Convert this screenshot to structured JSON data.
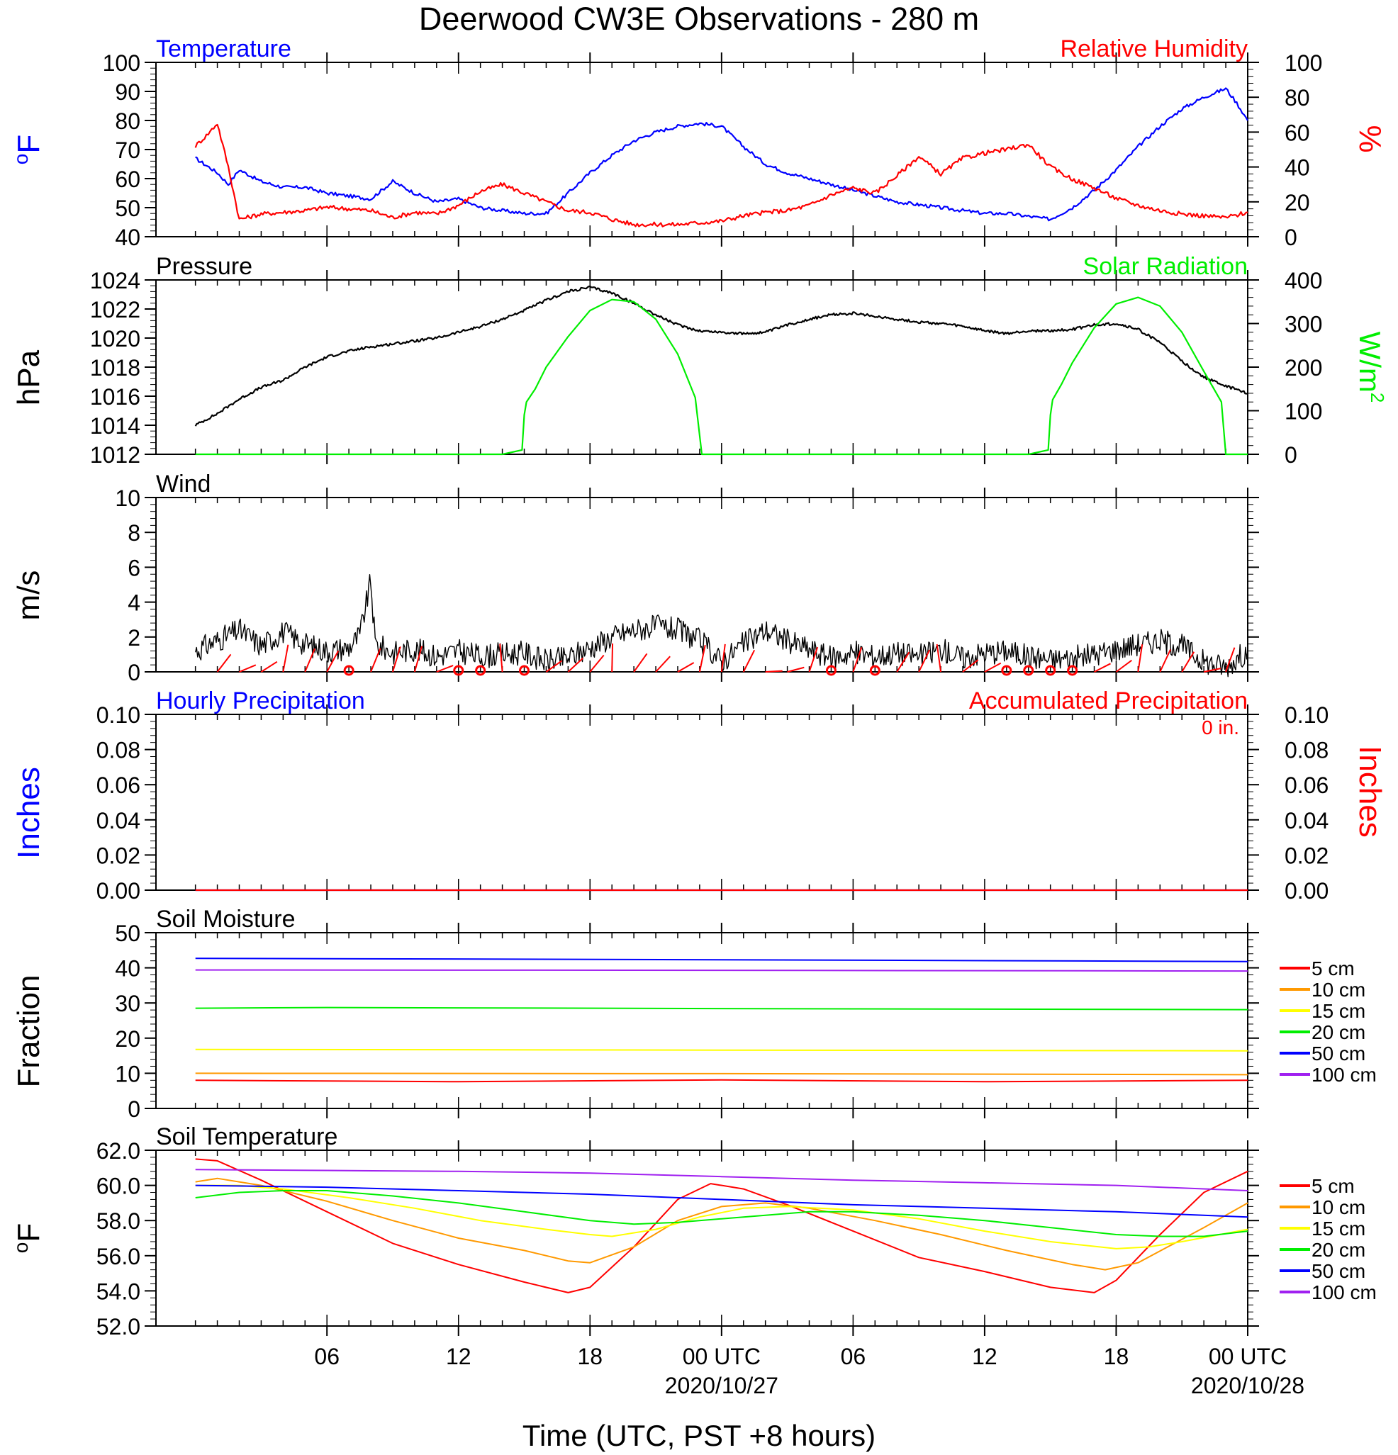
{
  "title": "Deerwood CW3E Observations - 280 m",
  "xlabel": "Time (UTC, PST +8 hours)",
  "x_ticks": [
    {
      "label": "06",
      "sub": ""
    },
    {
      "label": "12",
      "sub": ""
    },
    {
      "label": "18",
      "sub": ""
    },
    {
      "label": "00 UTC",
      "sub": "2020/10/27"
    },
    {
      "label": "06",
      "sub": ""
    },
    {
      "label": "12",
      "sub": ""
    },
    {
      "label": "18",
      "sub": ""
    },
    {
      "label": "00 UTC",
      "sub": "2020/10/28"
    }
  ],
  "colors": {
    "blue": "#0000ff",
    "red": "#ff0000",
    "green": "#00ee00",
    "black": "#000000",
    "orange": "#ff9900",
    "yellow": "#ffff00",
    "purple": "#a020f0"
  },
  "chart_data": [
    {
      "type": "line",
      "title_left": "Temperature",
      "title_right": "Relative Humidity",
      "ylabel_left": "oF",
      "ylabel_right": "%",
      "yticks_left": [
        "40",
        "50",
        "60",
        "70",
        "80",
        "90",
        "100"
      ],
      "yticks_right": [
        "0",
        "20",
        "40",
        "60",
        "80",
        "100"
      ],
      "ylim_left": [
        40,
        100
      ],
      "ylim_right": [
        0,
        100
      ],
      "x_hours": [
        0,
        24,
        48
      ],
      "series": [
        {
          "name": "Temperature",
          "axis": "left",
          "color": "#0000ff",
          "x": [
            0,
            1,
            1.5,
            2,
            3,
            4,
            5,
            6,
            7,
            8,
            9,
            10,
            11,
            12,
            13,
            14,
            15,
            16,
            17,
            18,
            19,
            20,
            21,
            22,
            23,
            24,
            25,
            26,
            27,
            28,
            29,
            30,
            31,
            32,
            33,
            34,
            35,
            36,
            37,
            38,
            39,
            40,
            41,
            42,
            43,
            44,
            45,
            46,
            47,
            47.5,
            48
          ],
          "y": [
            67,
            62,
            58,
            63,
            59,
            57,
            57,
            55,
            54,
            53,
            59,
            55,
            52,
            53,
            50,
            49,
            48,
            48,
            55,
            62,
            68,
            73,
            76,
            78,
            79,
            78,
            71,
            65,
            62,
            60,
            58,
            56,
            54,
            52,
            51,
            50,
            49,
            48,
            48,
            47,
            46,
            50,
            56,
            63,
            71,
            78,
            84,
            88,
            91,
            86,
            80
          ]
        },
        {
          "name": "Relative Humidity",
          "axis": "right",
          "color": "#ff0000",
          "x": [
            0,
            0.5,
            1,
            1.5,
            2,
            3,
            4,
            5,
            6,
            7,
            8,
            9,
            10,
            11,
            12,
            13,
            14,
            15,
            16,
            17,
            18,
            19,
            20,
            21,
            22,
            23,
            24,
            25,
            26,
            27,
            28,
            29,
            30,
            31,
            32,
            33,
            34,
            35,
            36,
            37,
            38,
            39,
            40,
            41,
            42,
            43,
            44,
            45,
            46,
            47,
            48
          ],
          "y": [
            52,
            58,
            65,
            40,
            10,
            13,
            14,
            15,
            17,
            16,
            15,
            11,
            14,
            13,
            18,
            26,
            30,
            25,
            20,
            15,
            14,
            10,
            7,
            7,
            7,
            8,
            9,
            12,
            14,
            15,
            18,
            24,
            28,
            25,
            35,
            46,
            36,
            45,
            48,
            50,
            53,
            40,
            33,
            28,
            22,
            18,
            15,
            13,
            12,
            11,
            14
          ]
        }
      ]
    },
    {
      "type": "line",
      "title_left": "Pressure",
      "title_right": "Solar Radiation",
      "ylabel_left": "hPa",
      "ylabel_right": "W/m2",
      "yticks_left": [
        "1012",
        "1014",
        "1016",
        "1018",
        "1020",
        "1022",
        "1024"
      ],
      "yticks_right": [
        "0",
        "100",
        "200",
        "300",
        "400"
      ],
      "ylim_left": [
        1012,
        1024
      ],
      "ylim_right": [
        0,
        400
      ],
      "series": [
        {
          "name": "Pressure",
          "axis": "left",
          "color": "#000000",
          "x": [
            0,
            1,
            2,
            3,
            4,
            5,
            6,
            7,
            8,
            9,
            10,
            11,
            12,
            13,
            14,
            15,
            16,
            17,
            18,
            19,
            20,
            21,
            22,
            23,
            24,
            25,
            26,
            27,
            28,
            29,
            30,
            31,
            32,
            33,
            34,
            35,
            36,
            37,
            38,
            39,
            40,
            41,
            42,
            43,
            44,
            45,
            46,
            47,
            48
          ],
          "y": [
            1014,
            1014.8,
            1015.8,
            1016.6,
            1017.1,
            1018,
            1018.7,
            1019.1,
            1019.4,
            1019.6,
            1019.8,
            1020,
            1020.4,
            1020.8,
            1021.3,
            1021.9,
            1022.6,
            1023.2,
            1023.5,
            1023.1,
            1022.4,
            1021.6,
            1020.9,
            1020.5,
            1020.4,
            1020.3,
            1020.4,
            1020.9,
            1021.3,
            1021.6,
            1021.7,
            1021.5,
            1021.3,
            1021.1,
            1021,
            1020.8,
            1020.5,
            1020.3,
            1020.5,
            1020.5,
            1020.6,
            1020.9,
            1021,
            1020.6,
            1019.7,
            1018.4,
            1017.3,
            1016.7,
            1016.2
          ]
        },
        {
          "name": "Solar Radiation",
          "axis": "right",
          "color": "#00ee00",
          "x": [
            0,
            14,
            14.9,
            15,
            15.1,
            15.5,
            16,
            17,
            18,
            19,
            20,
            21,
            22,
            22.8,
            23.1,
            24,
            38,
            38.9,
            39,
            39.1,
            39.5,
            40,
            41,
            42,
            43,
            44,
            45,
            46,
            46.8,
            47,
            48
          ],
          "y": [
            0,
            0,
            10,
            90,
            120,
            150,
            200,
            270,
            330,
            355,
            350,
            310,
            230,
            130,
            0,
            0,
            0,
            10,
            90,
            125,
            160,
            210,
            290,
            345,
            360,
            340,
            280,
            190,
            120,
            0,
            0
          ]
        }
      ]
    },
    {
      "type": "line",
      "title_left": "Wind",
      "ylabel_left": "m/s",
      "yticks_left": [
        "0",
        "2",
        "4",
        "6",
        "8",
        "10"
      ],
      "ylim_left": [
        0,
        10
      ],
      "series": [
        {
          "name": "Wind",
          "axis": "left",
          "color": "#000000",
          "x": [
            0,
            1,
            2,
            3,
            4,
            5,
            6,
            7,
            7.5,
            8,
            8.2,
            9,
            10,
            11,
            12,
            13,
            14,
            15,
            16,
            17,
            18,
            19,
            20,
            21,
            22,
            23,
            24,
            25,
            26,
            27,
            28,
            29,
            30,
            31,
            32,
            33,
            34,
            35,
            36,
            37,
            38,
            39,
            40,
            41,
            42,
            43,
            44,
            45,
            46,
            47,
            48
          ],
          "y": [
            1.2,
            1.8,
            2.4,
            1.5,
            2.3,
            1.6,
            1.2,
            1.4,
            2.1,
            5.2,
            1.6,
            1.1,
            1.3,
            0.9,
            1.2,
            0.9,
            1.0,
            1.1,
            0.6,
            0.8,
            1.4,
            2.0,
            2.4,
            2.6,
            2.4,
            1.8,
            0.6,
            1.6,
            2.4,
            1.8,
            1.3,
            0.8,
            1.1,
            0.9,
            1.1,
            0.9,
            1.3,
            0.8,
            1.1,
            1.2,
            0.9,
            0.7,
            0.8,
            1.0,
            1.3,
            1.6,
            1.8,
            1.5,
            0.6,
            0.3,
            1.2
          ]
        }
      ],
      "calm_hours": [
        7,
        12,
        13,
        15,
        29,
        31,
        37,
        38,
        39,
        40
      ]
    },
    {
      "type": "bar",
      "title_left": "Hourly Precipitation",
      "title_right": "Accumulated Precipitation",
      "annotation": "0 in.",
      "ylabel_left": "Inches",
      "ylabel_right": "Inches",
      "yticks_left": [
        "0.00",
        "0.02",
        "0.04",
        "0.06",
        "0.08",
        "0.10"
      ],
      "yticks_right": [
        "0.00",
        "0.02",
        "0.04",
        "0.06",
        "0.08",
        "0.10"
      ],
      "ylim_left": [
        0,
        0.1
      ],
      "series": [
        {
          "name": "Hourly Precipitation",
          "axis": "left",
          "color": "#0000ff",
          "x": [
            0,
            48
          ],
          "y": [
            0,
            0
          ]
        },
        {
          "name": "Accumulated Precipitation",
          "axis": "left",
          "color": "#ff0000",
          "x": [
            0,
            48
          ],
          "y": [
            0,
            0
          ]
        }
      ]
    },
    {
      "type": "line",
      "title_left": "Soil Moisture",
      "ylabel_left": "Fraction",
      "yticks_left": [
        "0",
        "10",
        "20",
        "30",
        "40",
        "50"
      ],
      "ylim_left": [
        0,
        50
      ],
      "series": [
        {
          "name": "5 cm",
          "axis": "left",
          "color": "#ff0000",
          "x": [
            0,
            12,
            24,
            36,
            48
          ],
          "y": [
            8.0,
            7.6,
            8.1,
            7.6,
            8.0
          ]
        },
        {
          "name": "10 cm",
          "axis": "left",
          "color": "#ff9900",
          "x": [
            0,
            24,
            48
          ],
          "y": [
            10.0,
            9.9,
            9.6
          ]
        },
        {
          "name": "15 cm",
          "axis": "left",
          "color": "#ffff00",
          "x": [
            0,
            24,
            48
          ],
          "y": [
            16.8,
            16.6,
            16.4
          ]
        },
        {
          "name": "20 cm",
          "axis": "left",
          "color": "#00ee00",
          "x": [
            0,
            6,
            24,
            48
          ],
          "y": [
            28.5,
            28.7,
            28.4,
            28.1
          ]
        },
        {
          "name": "50 cm",
          "axis": "left",
          "color": "#0000ff",
          "x": [
            0,
            24,
            48
          ],
          "y": [
            42.7,
            42.3,
            41.8
          ]
        },
        {
          "name": "100 cm",
          "axis": "left",
          "color": "#a020f0",
          "x": [
            0,
            24,
            48
          ],
          "y": [
            39.4,
            39.3,
            39.1
          ]
        }
      ]
    },
    {
      "type": "line",
      "title_left": "Soil Temperature",
      "ylabel_left": "oF",
      "yticks_left": [
        "52.0",
        "54.0",
        "56.0",
        "58.0",
        "60.0",
        "62.0"
      ],
      "ylim_left": [
        52,
        62
      ],
      "series": [
        {
          "name": "5 cm",
          "axis": "left",
          "color": "#ff0000",
          "x": [
            0,
            1,
            3,
            6,
            9,
            12,
            15,
            17,
            18,
            20,
            22,
            23.5,
            25,
            27,
            30,
            33,
            36,
            39,
            41,
            42,
            44,
            46,
            48
          ],
          "y": [
            61.5,
            61.4,
            60.3,
            58.5,
            56.7,
            55.5,
            54.5,
            53.9,
            54.2,
            56.5,
            59.2,
            60.1,
            59.8,
            58.9,
            57.4,
            55.9,
            55.1,
            54.2,
            53.9,
            54.6,
            57.2,
            59.6,
            60.8
          ]
        },
        {
          "name": "10 cm",
          "axis": "left",
          "color": "#ff9900",
          "x": [
            0,
            1,
            3,
            6,
            9,
            12,
            15,
            17,
            18,
            20,
            22,
            24,
            26,
            28,
            31,
            34,
            37,
            40,
            41.5,
            43,
            46,
            48
          ],
          "y": [
            60.2,
            60.4,
            60.0,
            59.1,
            58.0,
            57.0,
            56.3,
            55.7,
            55.6,
            56.5,
            58.0,
            58.8,
            59.0,
            58.7,
            58.0,
            57.2,
            56.3,
            55.5,
            55.2,
            55.6,
            57.6,
            59.0
          ]
        },
        {
          "name": "15 cm",
          "axis": "left",
          "color": "#ffff00",
          "x": [
            0,
            2,
            4,
            7,
            10,
            13,
            16,
            18,
            19,
            21,
            23,
            25,
            27,
            30,
            33,
            36,
            39,
            42,
            43.5,
            45,
            48
          ],
          "y": [
            60.0,
            60.0,
            59.8,
            59.3,
            58.7,
            58.0,
            57.5,
            57.2,
            57.1,
            57.5,
            58.2,
            58.7,
            58.8,
            58.6,
            58.1,
            57.4,
            56.8,
            56.4,
            56.5,
            56.8,
            57.5
          ]
        },
        {
          "name": "20 cm",
          "axis": "left",
          "color": "#00ee00",
          "x": [
            0,
            2,
            4,
            6,
            9,
            12,
            15,
            18,
            20,
            22,
            24,
            26,
            28,
            30,
            33,
            36,
            39,
            42,
            44,
            46,
            48
          ],
          "y": [
            59.3,
            59.6,
            59.7,
            59.7,
            59.4,
            59.0,
            58.5,
            58.0,
            57.8,
            57.9,
            58.1,
            58.3,
            58.5,
            58.5,
            58.3,
            58.0,
            57.6,
            57.2,
            57.1,
            57.1,
            57.4
          ]
        },
        {
          "name": "50 cm",
          "axis": "left",
          "color": "#0000ff",
          "x": [
            0,
            6,
            12,
            18,
            24,
            30,
            36,
            42,
            48
          ],
          "y": [
            60.0,
            59.9,
            59.7,
            59.5,
            59.2,
            58.9,
            58.7,
            58.5,
            58.2
          ]
        },
        {
          "name": "100 cm",
          "axis": "left",
          "color": "#a020f0",
          "x": [
            0,
            6,
            12,
            18,
            24,
            30,
            36,
            42,
            48
          ],
          "y": [
            60.9,
            60.85,
            60.8,
            60.7,
            60.5,
            60.3,
            60.15,
            60.0,
            59.7
          ]
        }
      ]
    }
  ],
  "legend_labels": [
    "5 cm",
    "10 cm",
    "15 cm",
    "20 cm",
    "50 cm",
    "100 cm"
  ]
}
